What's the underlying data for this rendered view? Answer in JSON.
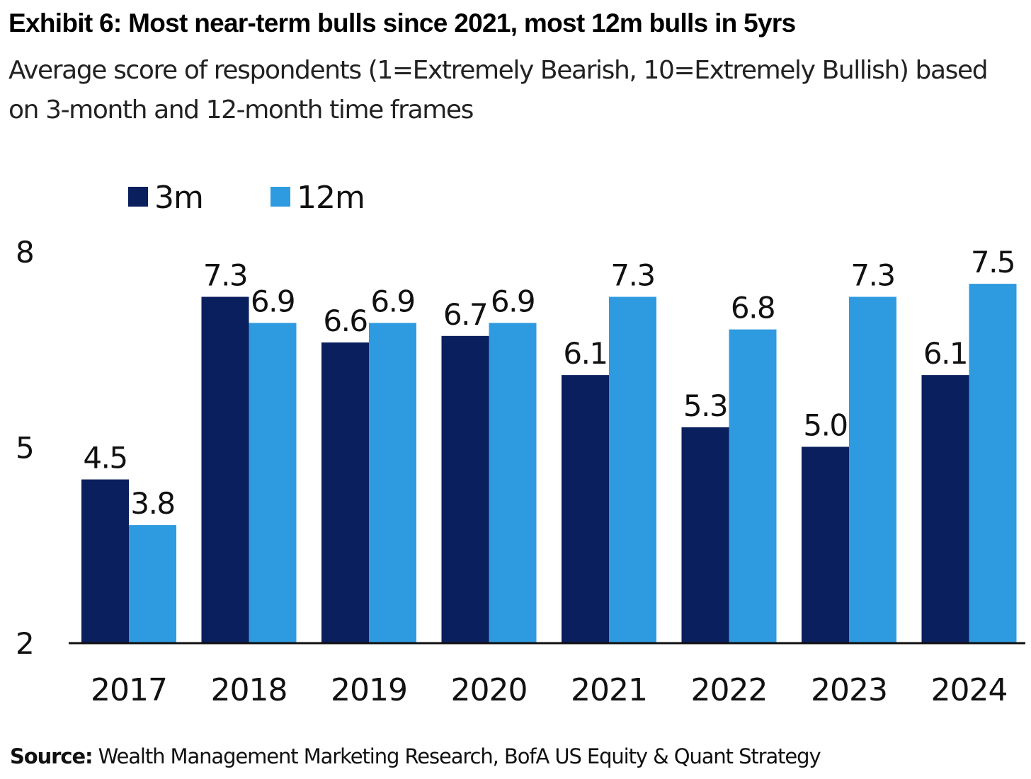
{
  "title": "Exhibit 6: Most near-term bulls since 2021, most 12m bulls in 5yrs",
  "subtitle": "Average score of respondents (1=Extremely Bearish, 10=Extremely Bullish) based on 3-month and 12-month time frames",
  "source": {
    "label": "Source:",
    "text": " Wealth Management Marketing Research, BofA US Equity & Quant Strategy"
  },
  "chart_data": {
    "type": "bar",
    "categories": [
      "2017",
      "2018",
      "2019",
      "2020",
      "2021",
      "2022",
      "2023",
      "2024"
    ],
    "series": [
      {
        "name": "3m",
        "color": "#0a1f5e",
        "values": [
          4.5,
          7.3,
          6.6,
          6.7,
          6.1,
          5.3,
          5.0,
          6.1
        ]
      },
      {
        "name": "12m",
        "color": "#2e9be0",
        "values": [
          3.8,
          6.9,
          6.9,
          6.9,
          7.3,
          6.8,
          7.3,
          7.5
        ]
      }
    ],
    "value_labels": [
      [
        "4.5",
        "7.3",
        "6.6",
        "6.7",
        "6.1",
        "5.3",
        "5.0",
        "6.1"
      ],
      [
        "3.8",
        "6.9",
        "6.9",
        "6.9",
        "7.3",
        "6.8",
        "7.3",
        "7.5"
      ]
    ],
    "ylim": [
      2,
      8
    ],
    "yticks": [
      2,
      5,
      8
    ],
    "legend": "top-left",
    "grid": false
  }
}
